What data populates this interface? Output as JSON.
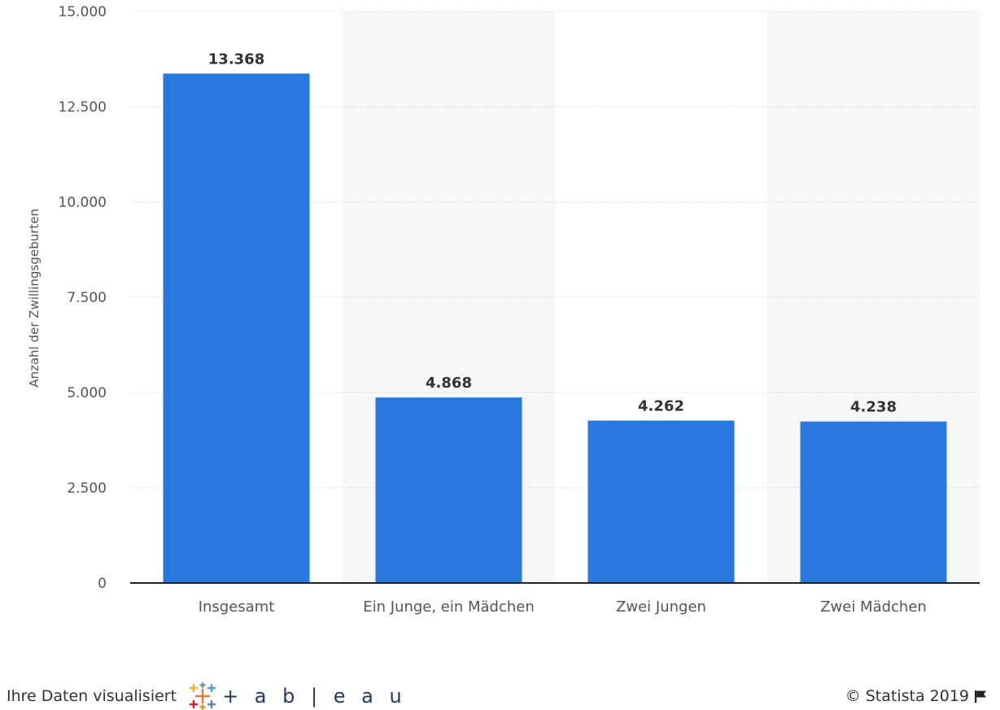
{
  "chart_data": {
    "type": "bar",
    "categories": [
      "Insgesamt",
      "Ein Junge, ein Mädchen",
      "Zwei Jungen",
      "Zwei Mädchen"
    ],
    "values": [
      13368,
      4868,
      4262,
      4238
    ],
    "value_labels": [
      "13.368",
      "4.868",
      "4.262",
      "4.238"
    ],
    "ylabel": "Anzahl der Zwillingsgeburten",
    "xlabel": "",
    "ylim": [
      0,
      15000
    ],
    "yticks": [
      0,
      2500,
      5000,
      7500,
      10000,
      12500,
      15000
    ],
    "ytick_labels": [
      "0",
      "2.500",
      "5.000",
      "7.500",
      "10.000",
      "12.500",
      "15.000"
    ],
    "grid": true,
    "colors": {
      "bar": "#2878e0",
      "grid": "#c8c8c8",
      "axis": "#222222",
      "tick_text": "#555555",
      "value_text": "#333333",
      "alt_band": "#f7f7fa"
    }
  },
  "footer": {
    "attribution": "Ihre Daten visualisiert",
    "tableau_wordmark": "+ a b | e a u",
    "copyright": "© Statista 2019"
  },
  "icons": {
    "tableau_logo": "tableau-logo-icon",
    "flag": "flag-icon"
  }
}
